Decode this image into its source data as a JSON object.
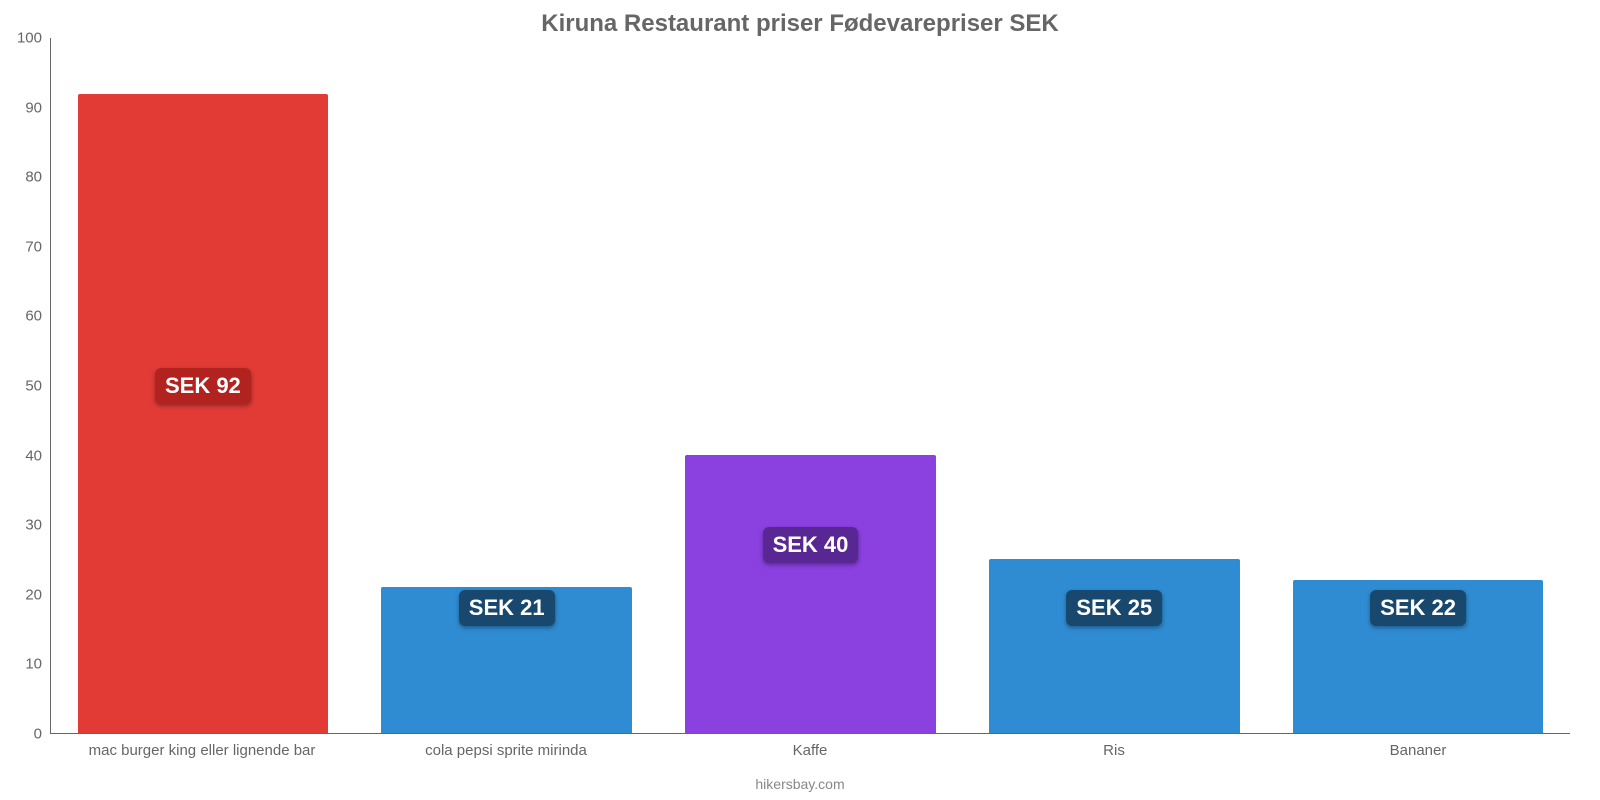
{
  "chart": {
    "type": "bar",
    "title": "Kiruna Restaurant priser Fødevarepriser SEK",
    "title_fontsize": 24,
    "title_color": "#666666",
    "background_color": "#ffffff",
    "axis_color": "#666666",
    "ylim": [
      0,
      100
    ],
    "ytick_step": 10,
    "yticks": [
      0,
      10,
      20,
      30,
      40,
      50,
      60,
      70,
      80,
      90,
      100
    ],
    "ytick_fontsize": 15,
    "xlabel_fontsize": 15,
    "xlabel_color": "#666666",
    "bar_width_pct": 16.5,
    "value_label_fontsize": 22,
    "footer": "hikersbay.com",
    "footer_color": "#888888",
    "footer_fontsize": 14,
    "categories": [
      {
        "label": "mac burger king eller lignende bar",
        "value": 92,
        "value_label": "SEK 92",
        "color": "#e23b36",
        "badge_bg": "#b22320",
        "badge_at": 50
      },
      {
        "label": "cola pepsi sprite mirinda",
        "value": 21,
        "value_label": "SEK 21",
        "color": "#2f8cd3",
        "badge_bg": "#18486d",
        "badge_at": 18
      },
      {
        "label": "Kaffe",
        "value": 40,
        "value_label": "SEK 40",
        "color": "#8b40e0",
        "badge_bg": "#592794",
        "badge_at": 27
      },
      {
        "label": "Ris",
        "value": 25,
        "value_label": "SEK 25",
        "color": "#2f8cd3",
        "badge_bg": "#18486d",
        "badge_at": 18
      },
      {
        "label": "Bananer",
        "value": 22,
        "value_label": "SEK 22",
        "color": "#2f8cd3",
        "badge_bg": "#18486d",
        "badge_at": 18
      }
    ]
  }
}
